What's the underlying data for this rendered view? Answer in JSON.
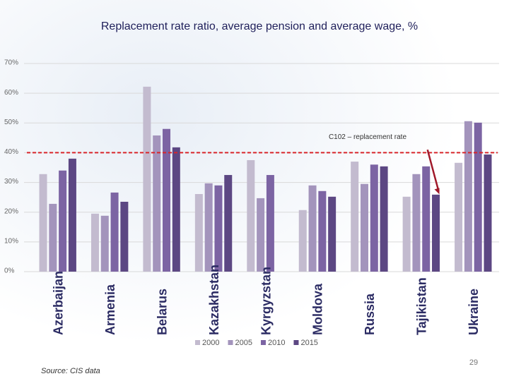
{
  "chart_data": {
    "type": "bar",
    "title": "Replacement rate ratio, average pension and average wage, %",
    "categories": [
      "Azerbaijan",
      "Armenia",
      "Belarus",
      "Kazakhstan",
      "Kyrgyzstan",
      "Moldova",
      "Russia",
      "Tajikistan",
      "Ukraine"
    ],
    "series": [
      {
        "name": "2000",
        "color": "#c3bbcf",
        "values": [
          32.8,
          19.5,
          62.2,
          26.1,
          37.5,
          20.7,
          37,
          25.2,
          36.6
        ]
      },
      {
        "name": "2005",
        "color": "#a394bc",
        "values": [
          22.8,
          18.8,
          45.8,
          29.7,
          24.7,
          29,
          29.5,
          32.8,
          50.6
        ]
      },
      {
        "name": "2010",
        "color": "#7c64a3",
        "values": [
          34,
          26.6,
          48,
          29,
          32.5,
          27.1,
          36,
          35.4,
          50.1
        ]
      },
      {
        "name": "2015",
        "color": "#5c4783",
        "values": [
          38,
          23.5,
          41.8,
          32.5,
          null,
          25.2,
          35.4,
          25.9,
          39.4
        ]
      }
    ],
    "ylim": [
      0,
      70
    ],
    "yticks": [
      {
        "value": 0,
        "label": "0%"
      },
      {
        "value": 10,
        "label": "10%"
      },
      {
        "value": 20,
        "label": "20%"
      },
      {
        "value": 30,
        "label": "30%"
      },
      {
        "value": 40,
        "label": "40%"
      },
      {
        "value": 50,
        "label": "50%"
      },
      {
        "value": 60,
        "label": "60%"
      },
      {
        "value": 70,
        "label": "70%"
      }
    ],
    "grid": true,
    "reference_line": {
      "value": 40,
      "label": "C102 – replacement rate",
      "color": "#d9262b"
    },
    "legend": "bottom"
  },
  "source": "Source: CIS data",
  "page_number": "29"
}
